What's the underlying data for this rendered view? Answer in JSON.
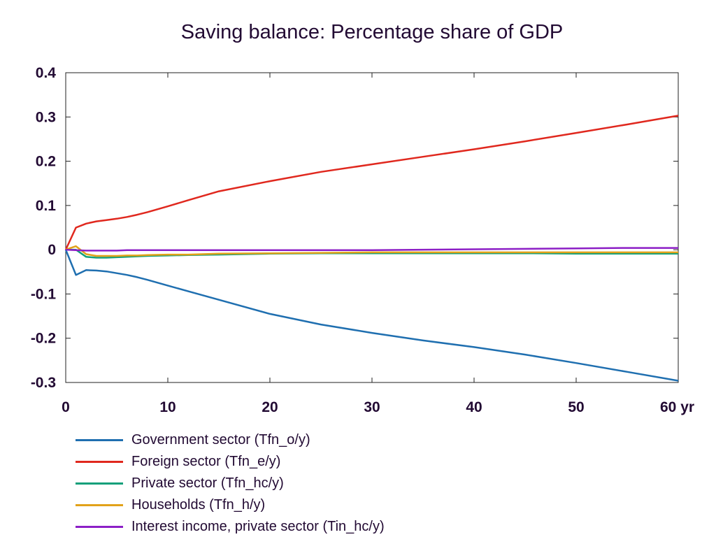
{
  "chart_data": {
    "type": "line",
    "title": "Saving balance: Percentage share of GDP",
    "xlabel": "",
    "ylabel": "",
    "xlim": [
      0,
      60
    ],
    "ylim": [
      -0.3,
      0.4
    ],
    "x_ticks": [
      "0",
      "10",
      "20",
      "30",
      "40",
      "50",
      "60 yr"
    ],
    "y_ticks": [
      "0.4",
      "0.3",
      "0.2",
      "0.1",
      "0",
      "-0.1",
      "-0.2",
      "-0.3"
    ],
    "grid": false,
    "legend_position": "bottom",
    "x": [
      0,
      1,
      2,
      3,
      4,
      5,
      6,
      7,
      8,
      10,
      12,
      15,
      20,
      25,
      30,
      35,
      40,
      45,
      50,
      55,
      60
    ],
    "series": [
      {
        "name": "Government sector (Tfn_o/y)",
        "color": "#1f6fb0",
        "values": [
          0,
          -0.057,
          -0.046,
          -0.047,
          -0.049,
          -0.053,
          -0.057,
          -0.062,
          -0.068,
          -0.081,
          -0.094,
          -0.113,
          -0.145,
          -0.169,
          -0.188,
          -0.205,
          -0.22,
          -0.237,
          -0.256,
          -0.276,
          -0.296
        ]
      },
      {
        "name": "Foreign sector (Tfn_e/y)",
        "color": "#e0281e",
        "values": [
          0,
          0.05,
          0.059,
          0.064,
          0.067,
          0.07,
          0.074,
          0.079,
          0.085,
          0.098,
          0.112,
          0.132,
          0.155,
          0.176,
          0.193,
          0.21,
          0.227,
          0.245,
          0.264,
          0.283,
          0.303
        ]
      },
      {
        "name": "Private sector (Tfn_hc/y)",
        "color": "#12a07a",
        "values": [
          0,
          0.0,
          -0.016,
          -0.018,
          -0.018,
          -0.017,
          -0.016,
          -0.015,
          -0.014,
          -0.013,
          -0.012,
          -0.011,
          -0.009,
          -0.008,
          -0.008,
          -0.008,
          -0.008,
          -0.008,
          -0.009,
          -0.009,
          -0.009
        ]
      },
      {
        "name": "Households (Tfn_h/y)",
        "color": "#e2a21a",
        "values": [
          0,
          0.008,
          -0.01,
          -0.014,
          -0.014,
          -0.014,
          -0.013,
          -0.013,
          -0.012,
          -0.011,
          -0.011,
          -0.009,
          -0.008,
          -0.007,
          -0.006,
          -0.006,
          -0.006,
          -0.006,
          -0.006,
          -0.006,
          -0.006
        ]
      },
      {
        "name": "Interest income, private sector (Tin_hc/y)",
        "color": "#8c1fc6",
        "values": [
          0,
          -0.001,
          -0.002,
          -0.002,
          -0.002,
          -0.002,
          -0.001,
          -0.001,
          -0.001,
          -0.001,
          -0.001,
          -0.001,
          -0.001,
          -0.001,
          -0.001,
          0.0,
          0.001,
          0.002,
          0.003,
          0.004,
          0.004
        ]
      }
    ]
  }
}
